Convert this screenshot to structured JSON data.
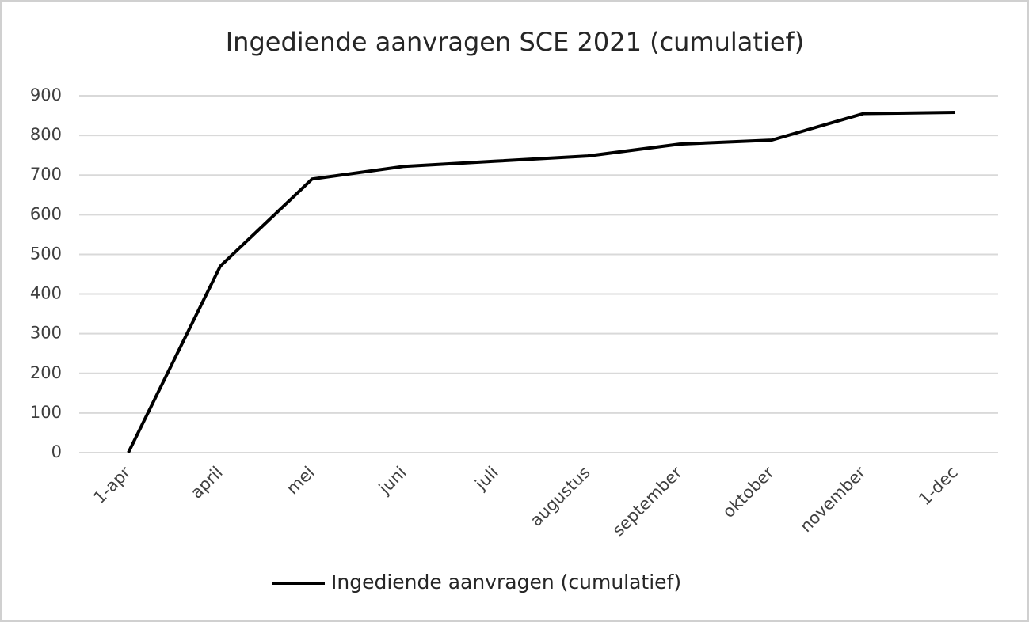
{
  "chart_data": {
    "type": "line",
    "title": "Ingediende aanvragen SCE 2021 (cumulatief)",
    "categories": [
      "1-apr",
      "april",
      "mei",
      "juni",
      "juli",
      "augustus",
      "september",
      "oktober",
      "november",
      "1-dec"
    ],
    "series": [
      {
        "name": "Ingediende aanvragen (cumulatief)",
        "color": "#000000",
        "values": [
          0,
          470,
          690,
          722,
          735,
          748,
          778,
          788,
          855,
          858
        ]
      }
    ],
    "ylim": [
      0,
      900
    ],
    "yticks": [
      0,
      100,
      200,
      300,
      400,
      500,
      600,
      700,
      800,
      900
    ],
    "grid": true,
    "legend": "bottom"
  }
}
